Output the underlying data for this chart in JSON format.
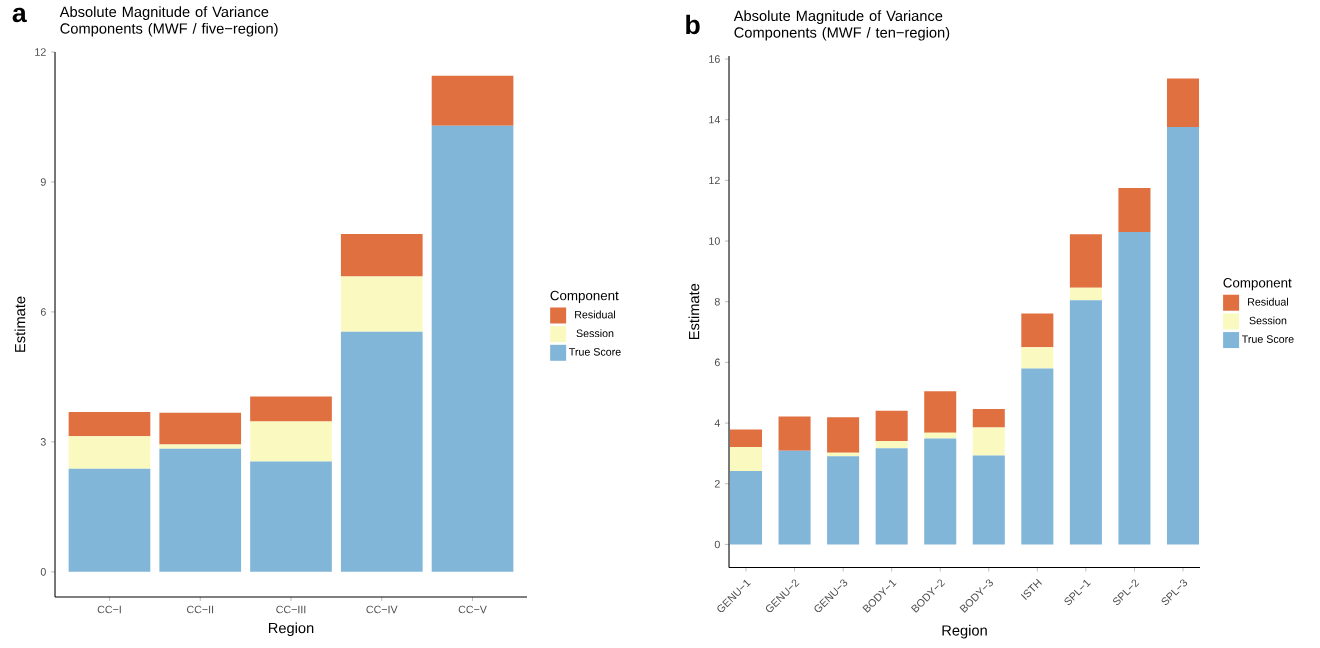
{
  "chart_data": [
    {
      "type": "bar",
      "stacked": true,
      "title": "Absolute Magnitude of Variance Components (MWF / five−region)",
      "xlabel": "Region",
      "ylabel": "Estimate",
      "legend_title": "Component",
      "legend": "right",
      "annotations": [
        "a"
      ],
      "categories": [
        "CC−I",
        "CC−II",
        "CC−III",
        "CC−IV",
        "CC−V"
      ],
      "ylim": [
        -0.58,
        12
      ],
      "yticks": [
        0,
        3,
        6,
        9,
        12
      ],
      "series": [
        {
          "name": "True Score",
          "color": "#82b6d9",
          "values": [
            2.38,
            2.84,
            2.55,
            5.54,
            10.3
          ]
        },
        {
          "name": "Session",
          "color": "#fafac0",
          "values": [
            0.75,
            0.1,
            0.92,
            1.28,
            null
          ]
        },
        {
          "name": "Residual",
          "color": "#e07040",
          "values": [
            0.56,
            0.73,
            0.58,
            0.98,
            1.15
          ]
        }
      ]
    },
    {
      "type": "bar",
      "stacked": true,
      "title": "Absolute Magnitude of Variance Components (MWF / ten−region)",
      "xlabel": "Region",
      "ylabel": "Estimate",
      "legend_title": "Component",
      "legend": "right",
      "annotations": [
        "b"
      ],
      "categories": [
        "GENU−1",
        "GENU−2",
        "GENU−3",
        "BODY−1",
        "BODY−2",
        "BODY−3",
        "ISTH",
        "SPL−1",
        "SPL−2",
        "SPL−3"
      ],
      "ylim": [
        -0.76,
        16.1
      ],
      "yticks": [
        0,
        2,
        4,
        6,
        8,
        10,
        12,
        14,
        16
      ],
      "series": [
        {
          "name": "True Score",
          "color": "#82b6d9",
          "values": [
            2.42,
            3.09,
            2.91,
            3.17,
            3.49,
            2.93,
            5.8,
            8.05,
            10.3,
            13.76
          ]
        },
        {
          "name": "Session",
          "color": "#fafac0",
          "values": [
            0.79,
            null,
            0.11,
            0.24,
            0.19,
            0.92,
            0.7,
            0.41,
            null,
            null
          ]
        },
        {
          "name": "Residual",
          "color": "#e07040",
          "values": [
            0.58,
            1.13,
            1.17,
            1.0,
            1.37,
            0.61,
            1.11,
            1.76,
            1.45,
            1.6
          ]
        }
      ]
    }
  ]
}
